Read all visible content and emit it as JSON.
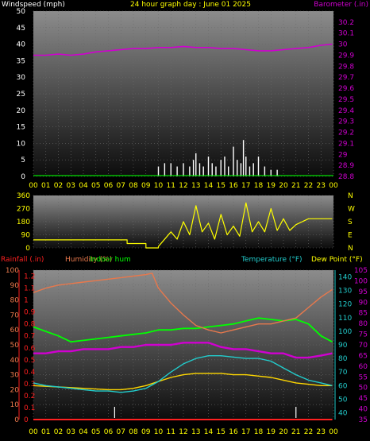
{
  "title": "24 hour graph day : June 01 2025",
  "colors": {
    "background": "#000000",
    "grid": "#6a6a6a",
    "panel_top": "#8c8c8c",
    "panel_bottom": "#0c0c0c",
    "title": "#ffff00",
    "wind_label": "#ffffff",
    "barometer": "#d000d0",
    "wind_speed": "#ffffff",
    "wind_gust": "#00dd00",
    "direction": "#ffff00",
    "rainfall": "#ff2020",
    "humidity": "#e8784c",
    "indoor_humidity": "#00ff00",
    "temperature": "#22cccc",
    "dew_point": "#ffff00",
    "indoor_temp": "#ffd700",
    "hours_text": "#ffff00"
  },
  "chart_data": [
    {
      "type": "line",
      "left_axis_label": "Windspeed (mph)",
      "right_axis_label": "Barometer (.in)",
      "left_ticks": [
        "0",
        "5",
        "10",
        "15",
        "20",
        "25",
        "30",
        "35",
        "40",
        "45",
        "50"
      ],
      "right_ticks": [
        "28.8",
        "28.9",
        "29",
        "29.1",
        "29.2",
        "29.3",
        "29.4",
        "29.5",
        "29.6",
        "29.7",
        "29.8",
        "29.9",
        "30",
        "30.1",
        "30.2"
      ],
      "x_ticks": [
        "00",
        "01",
        "02",
        "03",
        "04",
        "05",
        "06",
        "07",
        "08",
        "09",
        "10",
        "11",
        "12",
        "13",
        "14",
        "15",
        "16",
        "17",
        "18",
        "19",
        "20",
        "21",
        "22",
        "23",
        "00"
      ],
      "ylim_left": [
        0,
        50
      ],
      "ylim_right": [
        28.8,
        30.3
      ],
      "grid": true,
      "series": [
        {
          "name": "Barometer (.in)",
          "axis": "right",
          "x": [
            0,
            1,
            2,
            3,
            4,
            5,
            6,
            7,
            8,
            9,
            10,
            11,
            12,
            13,
            14,
            15,
            16,
            17,
            18,
            19,
            20,
            21,
            22,
            23,
            23.9
          ],
          "y": [
            29.9,
            29.9,
            29.91,
            29.9,
            29.91,
            29.93,
            29.94,
            29.95,
            29.96,
            29.96,
            29.97,
            29.97,
            29.98,
            29.97,
            29.97,
            29.96,
            29.96,
            29.95,
            29.94,
            29.94,
            29.95,
            29.96,
            29.97,
            29.99,
            30.0
          ]
        },
        {
          "name": "Windspeed (mph)",
          "axis": "left",
          "x": [
            10,
            10.5,
            11,
            11.5,
            12,
            12.5,
            12.8,
            13,
            13.3,
            13.6,
            14,
            14.3,
            14.6,
            15,
            15.3,
            15.6,
            16,
            16.3,
            16.6,
            16.8,
            17,
            17.3,
            17.6,
            18,
            18.5,
            19,
            19.5
          ],
          "y": [
            3,
            4,
            4,
            3,
            4,
            3,
            5,
            7,
            4,
            3,
            6,
            4,
            3,
            5,
            6,
            3,
            9,
            5,
            4,
            11,
            6,
            3,
            4,
            6,
            3,
            2,
            2
          ]
        }
      ]
    },
    {
      "type": "line",
      "left_ticks": [
        "0",
        "90",
        "180",
        "270",
        "360"
      ],
      "right_ticks": [
        "N",
        "W",
        "S",
        "E",
        "N"
      ],
      "ylim": [
        0,
        360
      ],
      "series": [
        {
          "name": "Wind direction",
          "axis": "left",
          "x": [
            0,
            7.5,
            7.5,
            9,
            9,
            10,
            10,
            11,
            11.5,
            12,
            12.5,
            13,
            13.5,
            14,
            14.5,
            15,
            15.5,
            16,
            16.5,
            17,
            17.5,
            18,
            18.5,
            19,
            19.5,
            20,
            20.5,
            21,
            22,
            23,
            23.9
          ],
          "y": [
            55,
            55,
            30,
            30,
            0,
            0,
            10,
            110,
            60,
            180,
            90,
            290,
            110,
            170,
            60,
            230,
            90,
            150,
            80,
            310,
            110,
            180,
            110,
            270,
            120,
            200,
            120,
            160,
            200,
            200,
            200
          ]
        }
      ]
    },
    {
      "type": "line",
      "rainfall_label": "Rainfall (.in)",
      "humidity_label": "Humidity (%)",
      "indoor_humidity_label": "Indoor hum",
      "temperature_label": "Temperature (°F)",
      "dew_point_label": "Dew Point (°F)",
      "rain_ticks": [
        "0",
        "0.1",
        "0.2",
        "0.3",
        "0.4",
        "0.5",
        "0.6",
        "0.7",
        "0.8",
        "0.9",
        "1",
        "1.1",
        "1.2"
      ],
      "hum_ticks": [
        "0",
        "10",
        "20",
        "30",
        "40",
        "50",
        "60",
        "70",
        "80",
        "90",
        "100"
      ],
      "temp_ticks": [
        "40",
        "50",
        "60",
        "70",
        "80",
        "90",
        "100",
        "110",
        "120",
        "130",
        "140"
      ],
      "dew_ticks": [
        "35",
        "40",
        "45",
        "50",
        "55",
        "60",
        "65",
        "70",
        "75",
        "80",
        "85",
        "90",
        "95",
        "100",
        "105"
      ],
      "ylim_hum": [
        0,
        100
      ],
      "ylim_temp": [
        35,
        145
      ],
      "ylim_dew": [
        35,
        105
      ],
      "series": [
        {
          "name": "Humidity (%)",
          "axis": "hum",
          "x": [
            0,
            1,
            2,
            3,
            4,
            5,
            6,
            7,
            8,
            9,
            9.5,
            10,
            11,
            12,
            13,
            14,
            15,
            16,
            17,
            18,
            19,
            20,
            21,
            22,
            23,
            23.9
          ],
          "y": [
            85,
            88,
            90,
            91,
            92,
            93,
            94,
            95,
            96,
            97,
            98,
            88,
            78,
            70,
            63,
            60,
            58,
            60,
            62,
            64,
            64,
            66,
            68,
            75,
            82,
            87
          ]
        },
        {
          "name": "Indoor hum",
          "axis": "hum",
          "x": [
            0,
            1,
            2,
            3,
            4,
            5,
            6,
            7,
            8,
            9,
            10,
            11,
            12,
            13,
            14,
            15,
            16,
            17,
            18,
            19,
            20,
            21,
            22,
            23,
            23.9
          ],
          "y": [
            62,
            59,
            56,
            52,
            53,
            54,
            55,
            56,
            57,
            58,
            60,
            60,
            61,
            61,
            62,
            63,
            64,
            66,
            68,
            67,
            66,
            67,
            64,
            56,
            52
          ]
        },
        {
          "name": "Temperature (°F)",
          "axis": "temp",
          "x": [
            0,
            1,
            2,
            3,
            4,
            5,
            6,
            7,
            8,
            9,
            10,
            11,
            12,
            13,
            14,
            15,
            16,
            17,
            18,
            19,
            20,
            21,
            22,
            23,
            23.9
          ],
          "y": [
            62,
            60,
            59,
            58,
            57,
            56,
            56,
            55,
            56,
            58,
            63,
            70,
            76,
            80,
            82,
            82,
            81,
            80,
            80,
            78,
            73,
            68,
            64,
            62,
            60
          ]
        },
        {
          "name": "Dew Point (°F)",
          "axis": "dew",
          "x": [
            0,
            1,
            2,
            3,
            4,
            5,
            6,
            7,
            8,
            9,
            10,
            11,
            12,
            13,
            14,
            15,
            16,
            17,
            18,
            19,
            20,
            21,
            22,
            23,
            23.9
          ],
          "y": [
            66,
            66,
            67,
            67,
            68,
            68,
            68,
            69,
            69,
            70,
            70,
            70,
            71,
            71,
            71,
            69,
            68,
            68,
            67,
            66,
            66,
            64,
            64,
            65,
            66
          ]
        },
        {
          "name": "Indoor temp",
          "axis": "temp",
          "x": [
            0,
            2,
            4,
            6,
            7,
            8,
            9,
            10,
            11,
            12,
            13,
            14,
            15,
            16,
            17,
            18,
            19,
            20,
            21,
            22,
            23,
            23.9
          ],
          "y": [
            60,
            59,
            58,
            57,
            57,
            58,
            60,
            63,
            66,
            68,
            69,
            69,
            69,
            68,
            68,
            67,
            66,
            64,
            62,
            61,
            60,
            60
          ]
        },
        {
          "name": "Rainfall (.in)",
          "axis": "rain",
          "x": [
            0,
            23.9
          ],
          "y": [
            0,
            0
          ]
        }
      ]
    }
  ]
}
